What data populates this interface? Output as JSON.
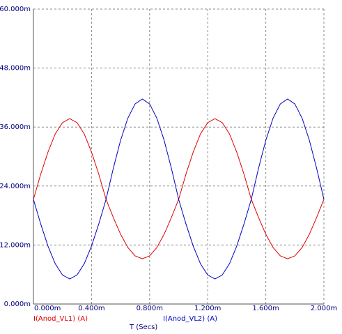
{
  "chart_data": {
    "type": "line",
    "x_label": "T (Secs)",
    "x": [
      0,
      5e-05,
      0.0001,
      0.00015,
      0.0002,
      0.00025,
      0.0003,
      0.00035,
      0.0004,
      0.00045,
      0.0005,
      0.00055,
      0.0006,
      0.00065,
      0.0007,
      0.00075,
      0.0008,
      0.00085,
      0.0009,
      0.00095,
      0.001,
      0.00105,
      0.0011,
      0.00115,
      0.0012,
      0.00125,
      0.0013,
      0.00135,
      0.0014,
      0.00145,
      0.0015,
      0.00155,
      0.0016,
      0.00165,
      0.0017,
      0.00175,
      0.0018,
      0.00185,
      0.0019,
      0.00195,
      0.002
    ],
    "series": [
      {
        "name": "I(Anod_VL1) (A)",
        "color": "#e00000",
        "values": [
          0.0213,
          0.0264,
          0.0309,
          0.0346,
          0.0369,
          0.0377,
          0.0369,
          0.0346,
          0.0309,
          0.0264,
          0.0213,
          0.0176,
          0.0142,
          0.0115,
          0.0098,
          0.0092,
          0.0098,
          0.0115,
          0.0142,
          0.0176,
          0.0213,
          0.0264,
          0.0309,
          0.0346,
          0.0369,
          0.0377,
          0.0369,
          0.0346,
          0.0309,
          0.0264,
          0.0213,
          0.0176,
          0.0142,
          0.0115,
          0.0098,
          0.0092,
          0.0098,
          0.0115,
          0.0142,
          0.0176,
          0.0213
        ]
      },
      {
        "name": "I(Anod_VL2) (A)",
        "color": "#0000c0",
        "values": [
          0.0213,
          0.0163,
          0.0118,
          0.0082,
          0.0059,
          0.0051,
          0.0059,
          0.0082,
          0.0118,
          0.0163,
          0.0213,
          0.0276,
          0.0333,
          0.0378,
          0.0407,
          0.0417,
          0.0407,
          0.0378,
          0.0333,
          0.0276,
          0.0213,
          0.0163,
          0.0118,
          0.0082,
          0.0059,
          0.0051,
          0.0059,
          0.0082,
          0.0118,
          0.0163,
          0.0213,
          0.0276,
          0.0333,
          0.0378,
          0.0407,
          0.0417,
          0.0407,
          0.0378,
          0.0333,
          0.0276,
          0.0213
        ]
      }
    ],
    "xlim": [
      0,
      0.002
    ],
    "xticks": [
      {
        "value": 0,
        "label": "0.000m"
      },
      {
        "value": 0.0004,
        "label": "0.400m"
      },
      {
        "value": 0.0008,
        "label": "0.800m"
      },
      {
        "value": 0.0012,
        "label": "1.200m"
      },
      {
        "value": 0.0016,
        "label": "1.600m"
      },
      {
        "value": 0.002,
        "label": "2.000m"
      }
    ],
    "ylim": [
      0,
      0.06
    ],
    "yticks": [
      {
        "value": 0,
        "label": "0.000m"
      },
      {
        "value": 0.012,
        "label": "12.000m"
      },
      {
        "value": 0.024,
        "label": "24.000m"
      },
      {
        "value": 0.036,
        "label": "36.000m"
      },
      {
        "value": 0.048,
        "label": "48.000m"
      },
      {
        "value": 0.06,
        "label": "60.000m"
      }
    ],
    "grid": true
  }
}
